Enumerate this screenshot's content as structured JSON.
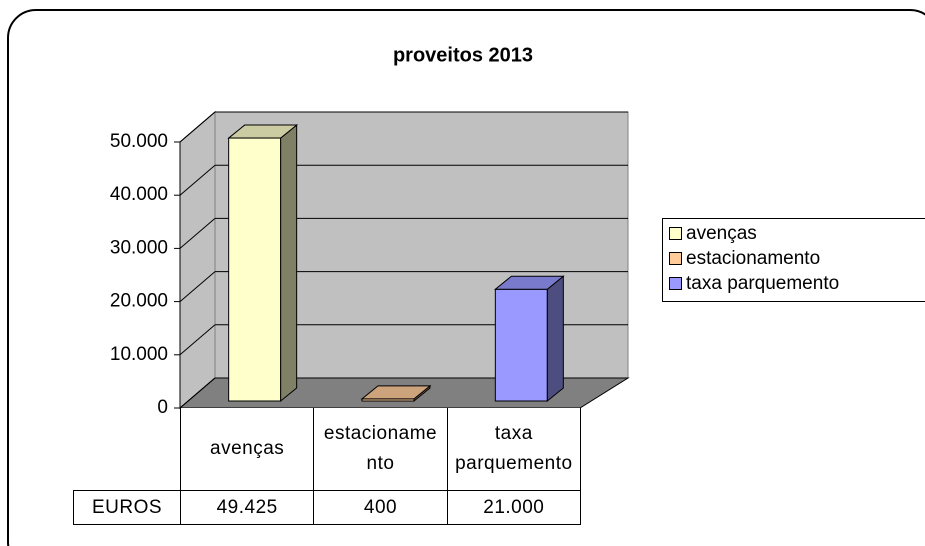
{
  "chart_data": {
    "type": "bar3d",
    "title": "proveitos 2013",
    "categories": [
      "avenças",
      "estacionamento",
      "taxa parquemento"
    ],
    "row_label": "EUROS",
    "values": [
      49425,
      400,
      21000
    ],
    "value_labels": [
      "49.425",
      "400",
      "21.000"
    ],
    "colors": [
      "#ffffcc",
      "#ffcc99",
      "#9999ff"
    ],
    "legend": [
      "avenças",
      "estacionamento",
      "taxa parquemento"
    ],
    "ylim": [
      0,
      50000
    ],
    "yticks": [
      0,
      {
        "value": 10000,
        "label": "10.000"
      },
      {
        "value": 20000,
        "label": "20.000"
      },
      {
        "value": 30000,
        "label": "30.000"
      },
      {
        "value": 40000,
        "label": "40.000"
      },
      {
        "value": 50000,
        "label": "50.000"
      }
    ],
    "grid": true
  }
}
